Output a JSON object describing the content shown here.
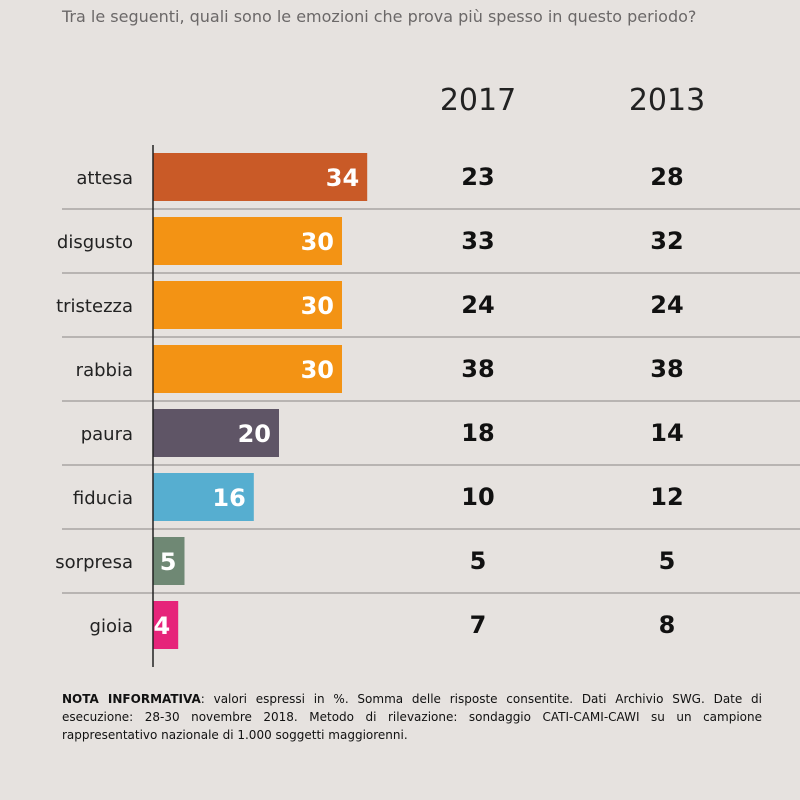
{
  "question": "Tra le seguenti, quali sono le emozioni che prova più spesso in questo periodo?",
  "columns": {
    "col2017": "2017",
    "col2013": "2013"
  },
  "chart_data": {
    "type": "bar",
    "orientation": "horizontal",
    "categories": [
      "attesa",
      "disgusto",
      "tristezza",
      "rabbia",
      "paura",
      "fiducia",
      "sorpresa",
      "gioia"
    ],
    "series": [
      {
        "name": "",
        "values": [
          34,
          30,
          30,
          30,
          20,
          16,
          5,
          4
        ]
      }
    ],
    "bar_colors": [
      "#c95a27",
      "#f39314",
      "#f39314",
      "#f39314",
      "#5f5566",
      "#56aed0",
      "#6f8874",
      "#e6247a"
    ],
    "table": {
      "2017": [
        23,
        33,
        24,
        38,
        18,
        10,
        5,
        7
      ],
      "2013": [
        28,
        32,
        24,
        38,
        14,
        12,
        5,
        8
      ]
    },
    "title": "",
    "xlabel": "",
    "ylabel": ""
  },
  "note": {
    "label": "NOTA INFORMATIVA",
    "text": ": valori espressi in %. Somma delle risposte consentite. Dati Archivio SWG. Date di esecuzione: 28-30 novembre 2018. Metodo di rilevazione: sondaggio CATI-CAMI-CAWI su un campione rappresentativo nazionale di 1.000 soggetti maggiorenni."
  }
}
